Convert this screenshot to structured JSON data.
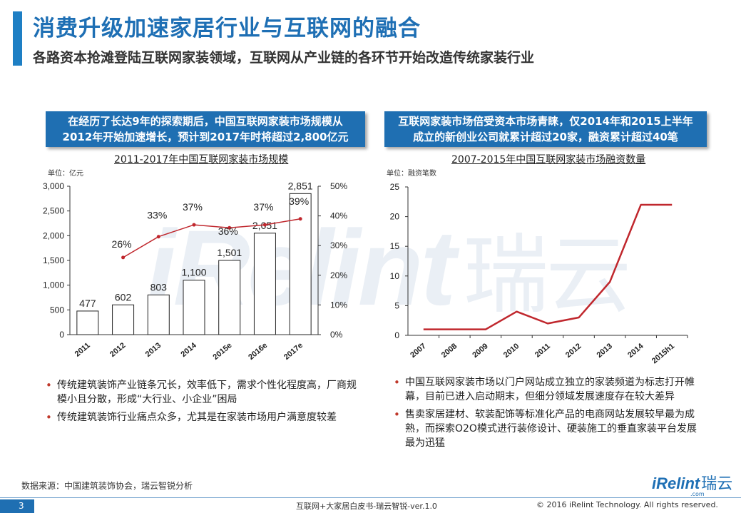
{
  "header": {
    "title": "消费升级加速家居行业与互联网的融合",
    "subtitle": "各路资本抢滩登陆互联网家装领域，互联网从产业链的各环节开始改造传统家装行业"
  },
  "left_panel": {
    "banner_line1": "在经历了长达9年的探索期后，中国互联网家装市场规模从",
    "banner_line2": "2012年开始加速增长，预计到2017年时将超过2,800亿元",
    "chart_title": "2011-2017年中国互联网家装市场规模",
    "unit": "单位：亿元",
    "bullets": [
      "传统建筑装饰产业链条冗长，效率低下，需求个性化程度高，厂商规模小且分散，形成“大行业、小企业”困局",
      "传统建筑装饰行业痛点众多，尤其是在家装市场用户满意度较差"
    ]
  },
  "right_panel": {
    "banner_line1": "互联网家装市场倍受资本市场青睐，仅2014年和2015上半年",
    "banner_line2": "成立的新创业公司就累计超过20家，融资累计超过40笔",
    "chart_title": "2007-2015年中国互联网家装市场融资数量",
    "unit": "单位：融资笔数",
    "bullets": [
      "中国互联网家装市场以门户网站成立独立的家装频道为标志打开帷幕，目前已进入启动期末，但细分领域发展速度存在较大差异",
      "售卖家居建材、软装配饰等标准化产品的电商网站发展较早最为成熟，而探索O2O模式进行装修设计、硬装施工的垂直家装平台发展最为迅猛"
    ]
  },
  "chart_data": [
    {
      "type": "bar",
      "title": "2011-2017年中国互联网家装市场规模",
      "categories": [
        "2011",
        "2012",
        "2013",
        "2014",
        "2015e",
        "2016e",
        "2017e"
      ],
      "series": [
        {
          "values": [
            477,
            602,
            803,
            1100,
            1501,
            2051,
            2851
          ],
          "value_labels": [
            "477",
            "602",
            "803",
            "1,100",
            "1,501",
            "2,051",
            "2,851"
          ],
          "color": "#ffffff",
          "border": "#222222"
        },
        {
          "type": "line",
          "axis": "right",
          "values": [
            null,
            26,
            33,
            37,
            36,
            37,
            39
          ],
          "value_labels": [
            "",
            "26%",
            "33%",
            "37%",
            "36%",
            "37%",
            "39%"
          ],
          "color": "#c0272d"
        }
      ],
      "ylim": [
        0,
        3000
      ],
      "yticks": [
        "0",
        "500",
        "1,000",
        "1,500",
        "2,000",
        "2,500",
        "3,000"
      ],
      "y2lim": [
        0,
        50
      ],
      "y2ticks": [
        "0%",
        "10%",
        "20%",
        "30%",
        "40%",
        "50%"
      ]
    },
    {
      "type": "line",
      "title": "2007-2015年中国互联网家装市场融资数量",
      "categories": [
        "2007",
        "2008",
        "2009",
        "2010",
        "2011",
        "2012",
        "2013",
        "2014",
        "2015h1"
      ],
      "series": [
        {
          "values": [
            1,
            1,
            1,
            4,
            2,
            3,
            9,
            22,
            22
          ],
          "color": "#c0272d"
        }
      ],
      "ylim": [
        0,
        25
      ],
      "yticks": [
        "0",
        "5",
        "10",
        "15",
        "20",
        "25"
      ]
    }
  ],
  "footer": {
    "source": "数据来源：中国建筑装饰协会，瑞云智锐分析",
    "page_number": "3",
    "doc_title": "互联网+大家居白皮书-瑞云智锐-ver.1.0",
    "copyright": "© 2016 iRelint Technology. All rights reserved.",
    "logo_text": "iRelint",
    "logo_cn": "瑞云",
    "logo_sub": ".com"
  },
  "watermark": {
    "text": "iRelint",
    "cn": "瑞云"
  }
}
